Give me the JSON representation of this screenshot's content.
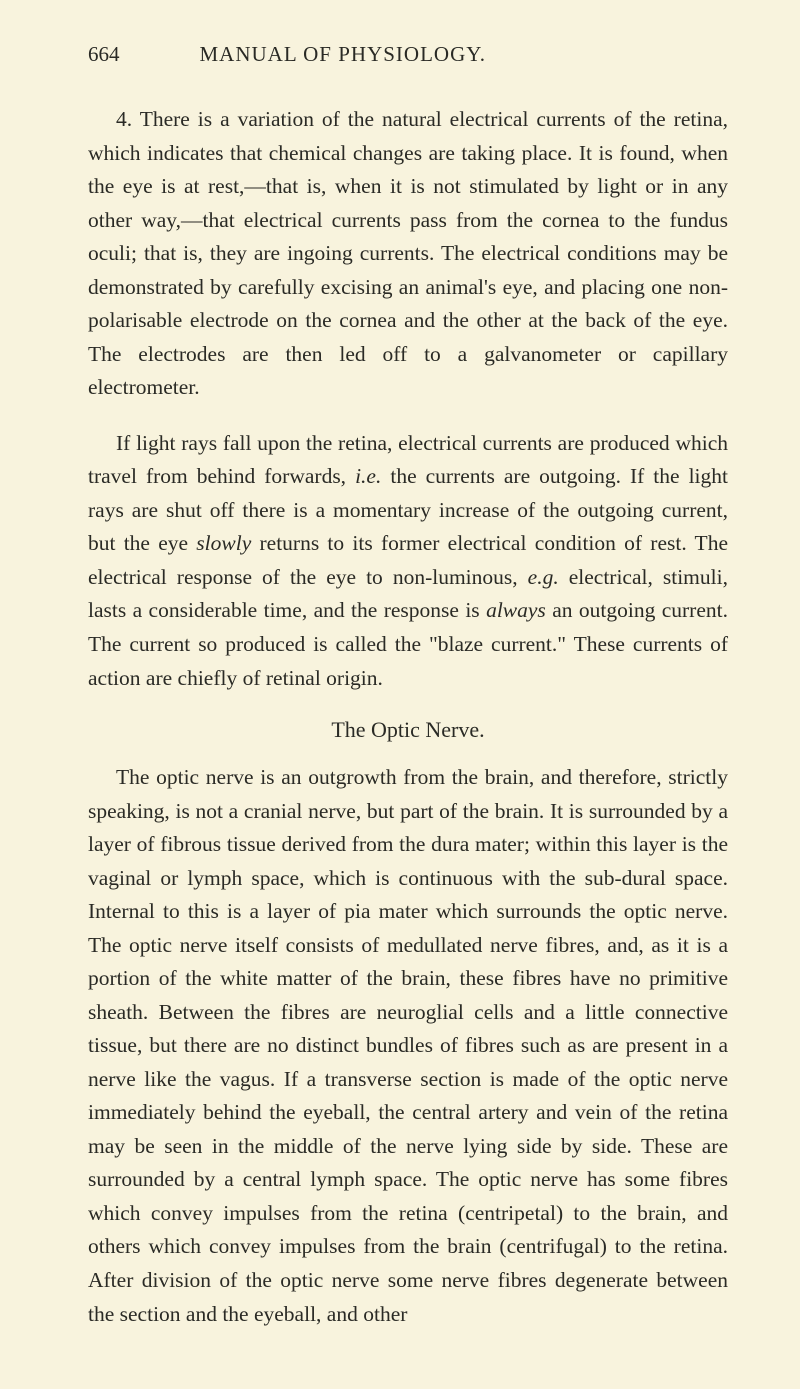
{
  "header": {
    "page_number": "664",
    "running_title": "MANUAL OF PHYSIOLOGY."
  },
  "paragraphs": {
    "p1": "4. There is a variation of the natural electrical currents of the retina, which indicates that chemical changes are taking place. It is found, when the eye is at rest,—that is, when it is not stimulated by light or in any other way,—that electrical currents pass from the cornea to the fundus oculi; that is, they are ingoing currents. The electrical conditions may be demonstrated by carefully excising an animal's eye, and placing one non-polarisable electrode on the cornea and the other at the back of the eye. The electrodes are then led off to a galvanometer or capillary electrometer.",
    "p2_a": "If light rays fall upon the retina, electrical currents are produced which travel from behind forwards, ",
    "p2_ie": "i.e.",
    "p2_b": " the currents are outgoing. If the light rays are shut off there is a momentary increase of the outgoing current, but the eye ",
    "p2_slowly": "slowly",
    "p2_c": " returns to its former electrical condition of rest. The electrical response of the eye to non-luminous, ",
    "p2_eg": "e.g.",
    "p2_d": " electrical, stimuli, lasts a considerable time, and the response is ",
    "p2_always": "always",
    "p2_e": " an outgoing current. The current so produced is called the \"blaze current.\" These currents of action are chiefly of retinal origin.",
    "heading": "The Optic Nerve.",
    "p3": "The optic nerve is an outgrowth from the brain, and therefore, strictly speaking, is not a cranial nerve, but part of the brain. It is surrounded by a layer of fibrous tissue derived from the dura mater; within this layer is the vaginal or lymph space, which is continuous with the sub-dural space. Internal to this is a layer of pia mater which surrounds the optic nerve. The optic nerve itself consists of medullated nerve fibres, and, as it is a portion of the white matter of the brain, these fibres have no primitive sheath. Between the fibres are neuroglial cells and a little connective tissue, but there are no distinct bundles of fibres such as are present in a nerve like the vagus. If a transverse section is made of the optic nerve immediately behind the eyeball, the central artery and vein of the retina may be seen in the middle of the nerve lying side by side. These are surrounded by a central lymph space. The optic nerve has some fibres which convey impulses from the retina (centripetal) to the brain, and others which convey impulses from the brain (centrifugal) to the retina. After division of the optic nerve some nerve fibres degenerate between the section and the eyeball, and other"
  }
}
